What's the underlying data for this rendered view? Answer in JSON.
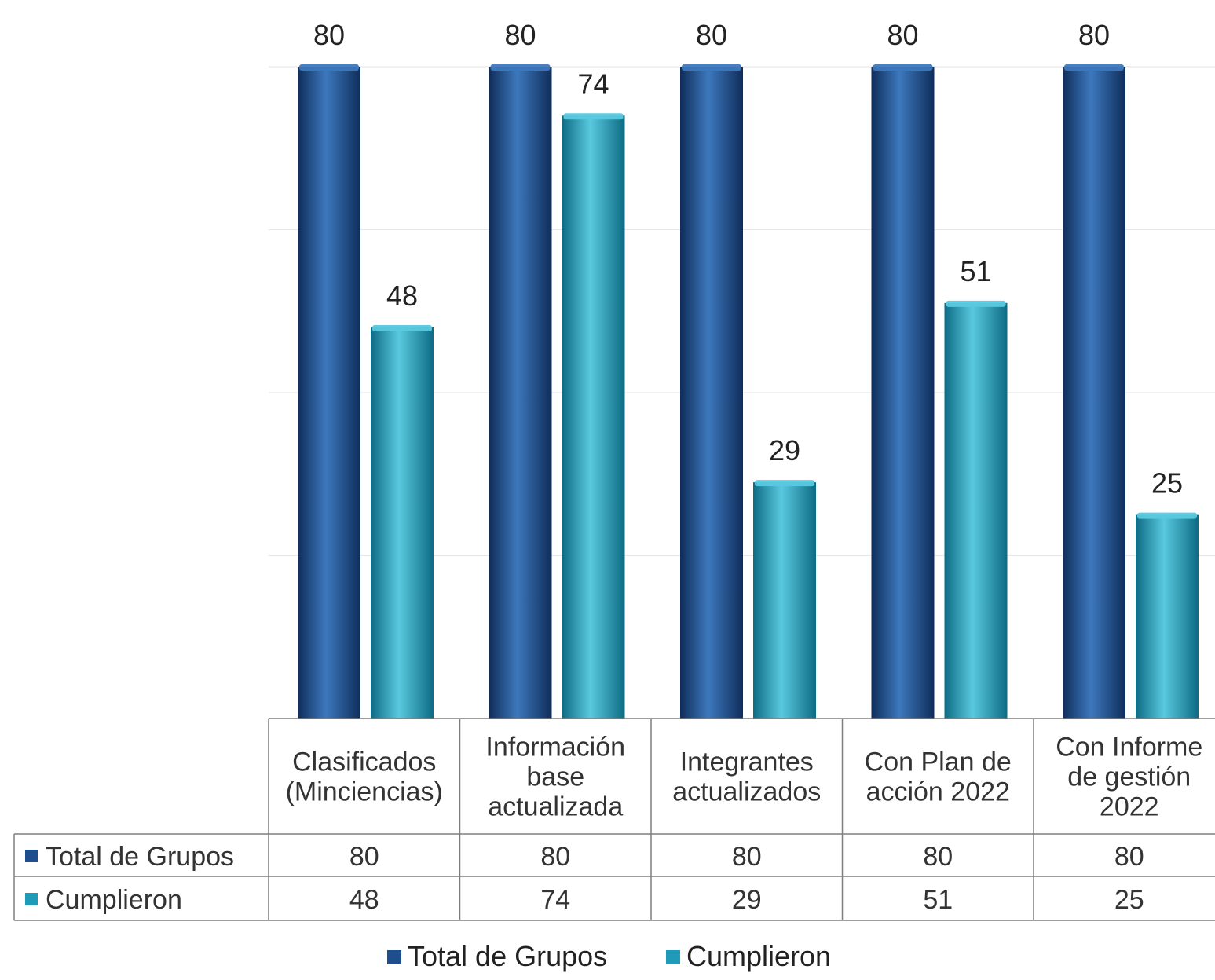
{
  "chart_data": {
    "type": "bar",
    "categories": [
      [
        "Clasificados",
        "(Minciencias)"
      ],
      [
        "Información",
        "base",
        "actualizada"
      ],
      [
        "Integrantes",
        "actualizados"
      ],
      [
        "Con Plan de",
        "acción 2022"
      ],
      [
        "Con Informe",
        "de gestión",
        "2022"
      ]
    ],
    "series": [
      {
        "name": "Total de Grupos",
        "values": [
          80,
          80,
          80,
          80,
          80
        ]
      },
      {
        "name": "Cumplieron",
        "values": [
          48,
          74,
          29,
          51,
          25
        ]
      }
    ],
    "ylim": [
      0,
      80
    ],
    "data_labels": true,
    "data_table": true,
    "legend": "bottom",
    "grid": true,
    "colors": {
      "total": "#1f4e8c",
      "total_light": "#3d78bd",
      "total_dark": "#0f2d5a",
      "cumplieron": "#1f9bb8",
      "cumplieron_light": "#59c9df",
      "cumplieron_dark": "#0d6b84",
      "table_border": "#7f7f7f",
      "gridline": "#e6e6e6"
    }
  }
}
